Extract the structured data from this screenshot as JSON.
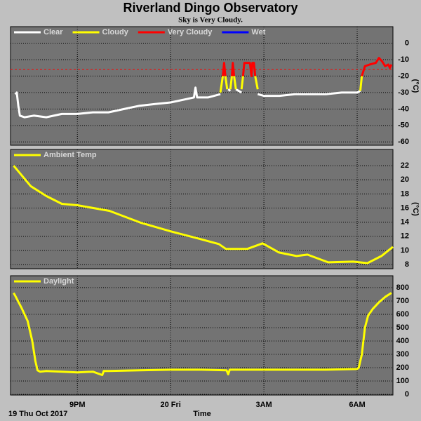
{
  "title": "Riverland Dingo Observatory",
  "subtitle": "Sky is Very Cloudy.",
  "date_label": "19 Thu Oct 2017",
  "x_label": "Time",
  "chart_data": [
    {
      "type": "line",
      "y_label": "(°C)",
      "xlim": [
        18.85,
        31.15
      ],
      "ylim": [
        -62,
        10
      ],
      "yticks": [
        -60,
        -50,
        -40,
        -30,
        -20,
        -10,
        0
      ],
      "grid": true,
      "threshold": {
        "value": -16,
        "color": "#ff0000"
      },
      "series": [
        {
          "name": "Clear",
          "color": "#ffffff",
          "x": [
            19.0,
            19.05,
            19.1,
            19.15,
            19.3,
            19.6,
            20.0,
            20.5,
            21.0,
            21.5,
            22.0,
            22.5,
            23.0,
            23.5,
            24.0,
            24.5,
            24.75,
            24.8,
            24.85,
            25.2,
            25.6,
            25.7,
            25.85,
            25.92,
            26.0,
            26.1,
            26.28,
            26.5,
            26.8,
            27.0,
            27.5,
            28.0,
            28.5,
            29.0,
            29.5,
            30.0,
            30.1
          ],
          "values": [
            -31,
            -30,
            -38,
            -44,
            -45,
            -44,
            -45,
            -43,
            -43,
            -42,
            -42,
            -40,
            -38,
            -37,
            -36,
            -34,
            -33,
            -27,
            -33,
            -33,
            -31,
            null,
            -28,
            -29,
            null,
            -28,
            -30,
            null,
            -31,
            -32,
            -32,
            -31,
            -31,
            -31,
            -30,
            -30,
            -29
          ]
        },
        {
          "name": "Cloudy",
          "color": "#ffff00",
          "x": [
            25.6,
            25.68,
            25.72,
            25.76,
            25.82,
            25.87,
            25.92,
            25.97,
            26.0,
            26.04,
            26.1,
            26.2,
            26.28,
            26.33,
            26.5,
            26.72,
            26.8,
            27.0,
            30.1,
            30.15
          ],
          "values": [
            -30,
            -20,
            null,
            -20,
            -28,
            null,
            -28,
            -20,
            null,
            -20,
            -28,
            null,
            -28,
            -20,
            null,
            -20,
            -28,
            null,
            -29,
            -20
          ]
        },
        {
          "name": "Very Cloudy",
          "color": "#ff0000",
          "x": [
            25.68,
            25.72,
            25.76,
            25.9,
            25.97,
            26.0,
            26.04,
            26.2,
            26.33,
            26.37,
            26.55,
            26.6,
            26.63,
            26.68,
            26.72,
            28.0,
            30.15,
            30.25,
            30.4,
            30.6,
            30.7,
            30.8,
            30.9,
            31.0,
            31.05,
            31.1
          ],
          "values": [
            -20,
            -12,
            -20,
            null,
            -20,
            -12,
            -20,
            null,
            -20,
            -12,
            -12,
            -20,
            -12,
            -12,
            -20,
            null,
            -20,
            -14,
            -13,
            -12,
            -9,
            -11,
            -14,
            -13,
            -15,
            -13
          ]
        },
        {
          "name": "Wet",
          "color": "#0000ff",
          "x": [
            30.0
          ],
          "values": [
            null
          ]
        }
      ]
    },
    {
      "type": "line",
      "y_label": "(°C)",
      "xlim": [
        18.85,
        31.15
      ],
      "ylim": [
        7.4,
        24.3
      ],
      "yticks": [
        8,
        10,
        12,
        14,
        16,
        18,
        20,
        22
      ],
      "grid": true,
      "series": [
        {
          "name": "Ambient Temp",
          "color": "#ffff00",
          "x": [
            18.95,
            19.5,
            20.0,
            20.5,
            21.0,
            22.03,
            23.05,
            24.0,
            24.87,
            25.55,
            25.78,
            26.46,
            26.96,
            27.49,
            28.05,
            28.4,
            29.07,
            29.87,
            30.33,
            30.78,
            31.15
          ],
          "values": [
            22,
            19.1,
            17.7,
            16.6,
            16.4,
            15.6,
            13.9,
            12.7,
            11.7,
            10.9,
            10.2,
            10.2,
            11.0,
            9.7,
            9.2,
            9.4,
            8.3,
            8.4,
            8.2,
            9.2,
            10.5
          ]
        }
      ]
    },
    {
      "type": "line",
      "xlim": [
        18.85,
        31.15
      ],
      "ylim": [
        -5,
        889
      ],
      "yticks": [
        0,
        100,
        200,
        300,
        400,
        500,
        600,
        700,
        800
      ],
      "grid": true,
      "xticks": [
        {
          "value": 21,
          "label": "9PM"
        },
        {
          "value": 24,
          "label": "20 Fri"
        },
        {
          "value": 27,
          "label": "3AM"
        },
        {
          "value": 30,
          "label": "6AM"
        }
      ],
      "series": [
        {
          "name": "Daylight",
          "color": "#ffff00",
          "x": [
            18.95,
            19.0,
            19.2,
            19.4,
            19.55,
            19.65,
            19.72,
            19.8,
            20.0,
            20.5,
            21.0,
            21.5,
            21.8,
            21.85,
            22.0,
            23.0,
            24.0,
            25.0,
            25.8,
            25.85,
            25.9,
            27.0,
            28.0,
            29.0,
            30.0,
            30.05,
            30.15,
            30.25,
            30.35,
            30.5,
            30.7,
            30.9,
            31.1
          ],
          "values": [
            760,
            740,
            650,
            550,
            400,
            250,
            180,
            170,
            175,
            170,
            165,
            170,
            145,
            175,
            175,
            180,
            185,
            185,
            180,
            150,
            185,
            185,
            185,
            185,
            190,
            200,
            300,
            500,
            590,
            640,
            690,
            730,
            760
          ]
        }
      ]
    }
  ]
}
